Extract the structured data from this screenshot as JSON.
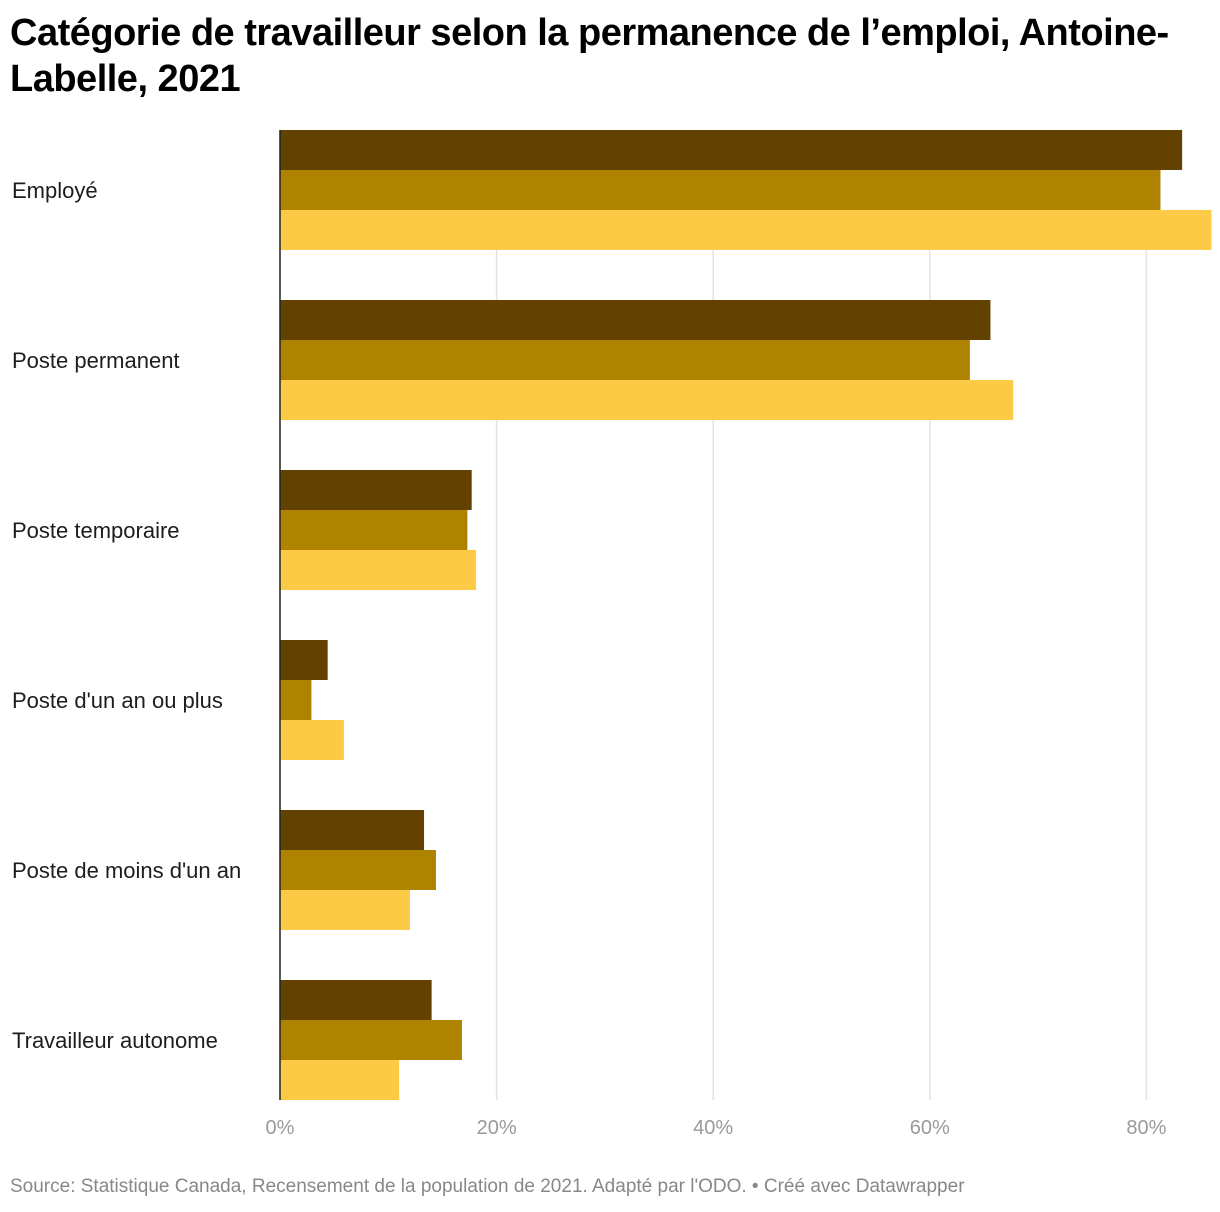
{
  "header": {
    "title": "Catégorie de travailleur selon la permanence de l’emploi, Antoine-Labelle, 2021"
  },
  "footer": {
    "source_text": "Source: Statistique Canada, Recensement de la population de 2021. Adapté par l'ODO. • Créé avec Datawrapper"
  },
  "chart_data": {
    "type": "bar",
    "orientation": "horizontal",
    "title": "Catégorie de travailleur selon la permanence de l’emploi, Antoine-Labelle, 2021",
    "xlabel": "",
    "ylabel": "",
    "xlim": [
      0,
      86
    ],
    "ticks": [
      0,
      20,
      40,
      60,
      80
    ],
    "tick_labels": [
      "0%",
      "20%",
      "40%",
      "60%",
      "80%"
    ],
    "grid": true,
    "legend": "none",
    "categories": [
      "Employé",
      "Poste permanent",
      "Poste temporaire",
      "Poste d'un an ou plus",
      "Poste de moins d'un an",
      "Travailleur autonome"
    ],
    "series": [
      {
        "color": "#634100",
        "values": [
          83.3,
          65.6,
          17.7,
          4.4,
          13.3,
          14.0
        ]
      },
      {
        "color": "#ae8300",
        "values": [
          81.3,
          63.7,
          17.3,
          2.9,
          14.4,
          16.8
        ]
      },
      {
        "color": "#fdca45",
        "values": [
          86.0,
          67.7,
          18.1,
          5.9,
          12.0,
          11.0
        ]
      }
    ]
  }
}
